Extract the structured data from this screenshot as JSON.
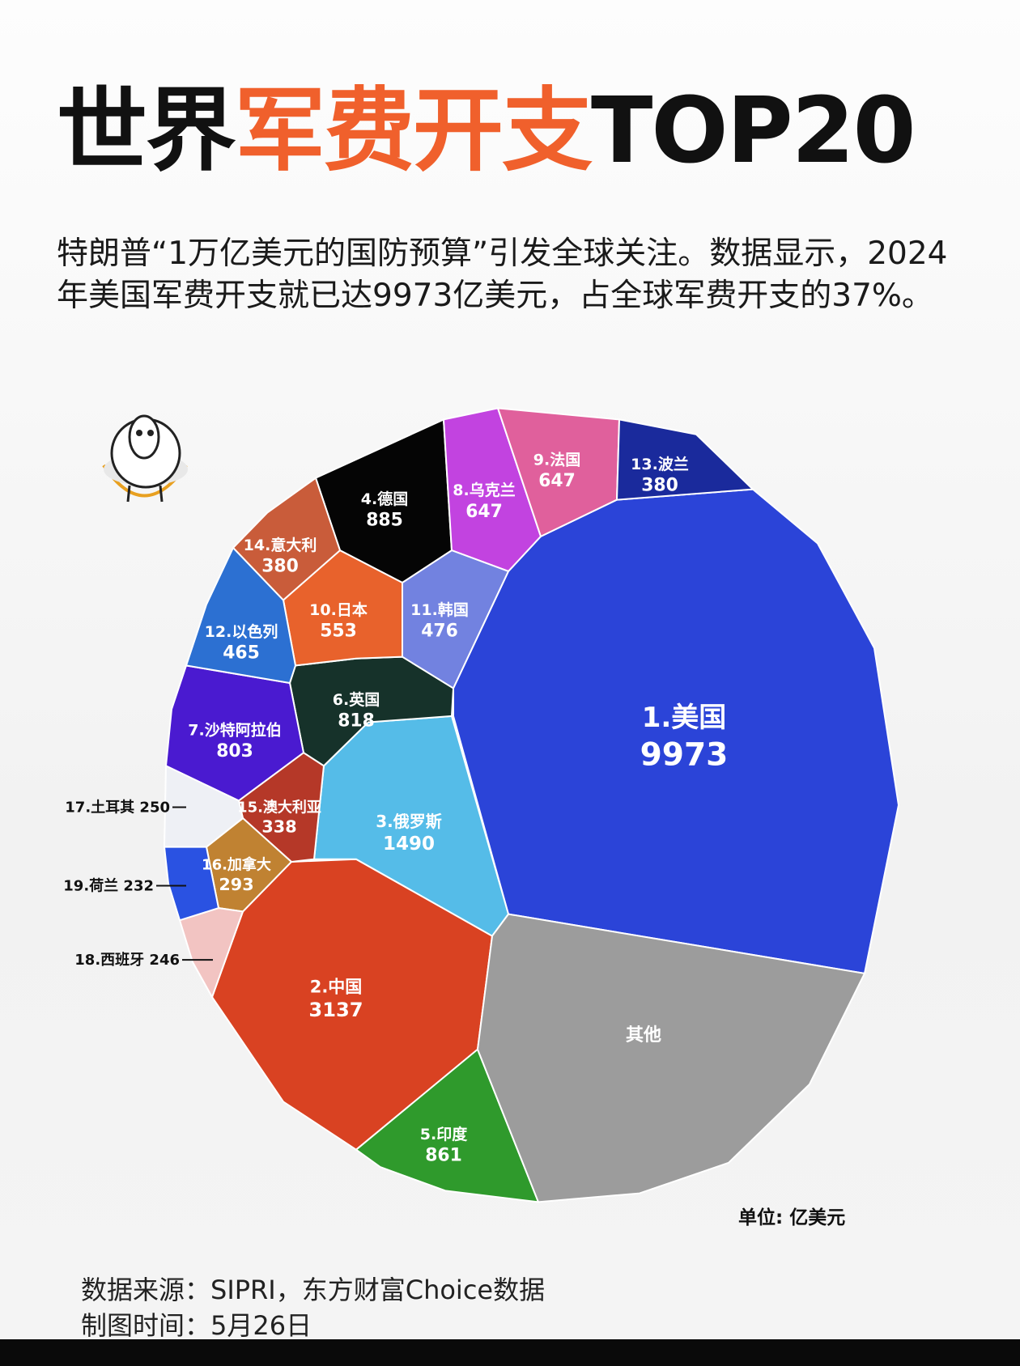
{
  "title": {
    "part1": "世界",
    "part2": "军费开支",
    "part3": "TOP20"
  },
  "subtitle": "特朗普“1万亿美元的国防预算”引发全球关注。数据显示，2024年美国军费开支就已达9973亿美元，占全球军费开支的37%。",
  "footer": {
    "source": "数据来源：SIPRI，东方财富Choice数据",
    "date": "制图时间：5月26日"
  },
  "colors": {
    "accent": "#f0602c"
  },
  "mascot_icon": "sheep-jump-rope-icon",
  "chart_data": {
    "type": "voronoi-treemap",
    "unit_label": "单位: 亿美元",
    "items": [
      {
        "label": "1.美国",
        "value": 9973,
        "color": "#2b44d8"
      },
      {
        "label": "2.中国",
        "value": 3137,
        "color": "#d94222"
      },
      {
        "label": "3.俄罗斯",
        "value": 1490,
        "color": "#55bce8"
      },
      {
        "label": "4.德国",
        "value": 885,
        "color": "#050505"
      },
      {
        "label": "5.印度",
        "value": 861,
        "color": "#2f9a2c"
      },
      {
        "label": "6.英国",
        "value": 818,
        "color": "#16322a"
      },
      {
        "label": "7.沙特阿拉伯",
        "value": 803,
        "color": "#4a1ad0"
      },
      {
        "label": "8.乌克兰",
        "value": 647,
        "color": "#c243e0"
      },
      {
        "label": "9.法国",
        "value": 647,
        "color": "#e0609c"
      },
      {
        "label": "10.日本",
        "value": 553,
        "color": "#e8622c"
      },
      {
        "label": "11.韩国",
        "value": 476,
        "color": "#7282e0"
      },
      {
        "label": "12.以色列",
        "value": 465,
        "color": "#2c70d2"
      },
      {
        "label": "13.波兰",
        "value": 380,
        "color": "#1a2a9c"
      },
      {
        "label": "14.意大利",
        "value": 380,
        "color": "#c95c3a"
      },
      {
        "label": "15.澳大利亚",
        "value": 338,
        "color": "#b53828"
      },
      {
        "label": "16.加拿大",
        "value": 293,
        "color": "#c08232"
      },
      {
        "label": "17.土耳其",
        "value": 250,
        "color": "#eef0f5"
      },
      {
        "label": "18.西班牙",
        "value": 246,
        "color": "#f2c4c2"
      },
      {
        "label": "19.荷兰",
        "value": 232,
        "color": "#2a52e2"
      },
      {
        "label": "其他",
        "value": null,
        "color": "#9c9c9c"
      }
    ]
  }
}
